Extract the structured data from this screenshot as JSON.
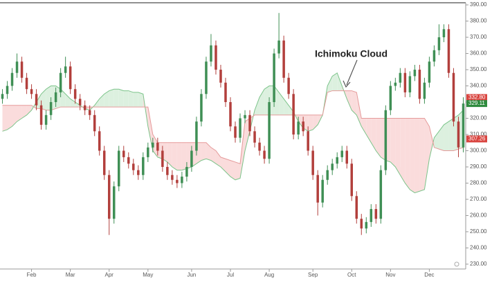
{
  "chart_data": {
    "type": "candlestick",
    "annotation": "Ichimoku Cloud",
    "open": [
      332,
      335,
      340,
      348,
      355,
      345,
      338,
      335,
      328,
      316,
      322,
      330,
      336,
      348,
      352,
      338,
      332,
      328,
      325,
      322,
      312,
      300,
      285,
      258,
      278,
      300,
      296,
      292,
      288,
      285,
      296,
      302,
      305,
      300,
      290,
      285,
      282,
      280,
      284,
      290,
      300,
      318,
      335,
      355,
      365,
      350,
      342,
      330,
      315,
      308,
      320,
      322,
      312,
      305,
      300,
      295,
      330,
      360,
      368,
      345,
      335,
      310,
      318,
      312,
      300,
      285,
      268,
      282,
      288,
      292,
      296,
      300,
      292,
      272,
      258,
      252,
      256,
      264,
      258,
      288,
      325,
      340,
      342,
      348,
      336,
      346,
      350,
      332,
      342,
      355,
      362,
      370,
      375,
      348,
      318,
      302
    ],
    "high": [
      338,
      343,
      351,
      360,
      358,
      348,
      341,
      338,
      331,
      325,
      333,
      339,
      351,
      358,
      355,
      341,
      335,
      331,
      328,
      325,
      315,
      303,
      288,
      281,
      303,
      303,
      299,
      295,
      291,
      299,
      305,
      308,
      308,
      303,
      293,
      288,
      285,
      287,
      293,
      303,
      321,
      338,
      358,
      372,
      368,
      353,
      345,
      333,
      318,
      323,
      325,
      325,
      315,
      308,
      303,
      333,
      363,
      385,
      371,
      348,
      338,
      321,
      321,
      315,
      303,
      288,
      285,
      291,
      295,
      299,
      303,
      303,
      295,
      275,
      261,
      259,
      267,
      267,
      291,
      328,
      343,
      345,
      351,
      351,
      349,
      353,
      353,
      345,
      358,
      365,
      378,
      378,
      378,
      351,
      321,
      333
    ],
    "low": [
      329,
      332,
      337,
      345,
      342,
      335,
      332,
      325,
      313,
      313,
      319,
      327,
      333,
      345,
      335,
      329,
      325,
      322,
      319,
      309,
      297,
      282,
      248,
      255,
      275,
      293,
      289,
      285,
      282,
      282,
      293,
      299,
      297,
      287,
      282,
      279,
      277,
      277,
      281,
      287,
      297,
      315,
      332,
      352,
      347,
      339,
      327,
      312,
      305,
      305,
      317,
      309,
      302,
      297,
      292,
      292,
      327,
      357,
      342,
      332,
      307,
      307,
      309,
      297,
      282,
      260,
      265,
      279,
      285,
      289,
      293,
      289,
      269,
      255,
      248,
      249,
      253,
      255,
      255,
      285,
      322,
      337,
      339,
      333,
      333,
      343,
      329,
      329,
      339,
      352,
      359,
      367,
      345,
      315,
      296,
      299
    ],
    "close": [
      335,
      340,
      348,
      355,
      345,
      338,
      335,
      328,
      316,
      322,
      330,
      336,
      348,
      352,
      338,
      332,
      328,
      325,
      322,
      312,
      300,
      285,
      258,
      278,
      300,
      296,
      292,
      288,
      285,
      296,
      302,
      305,
      300,
      290,
      285,
      282,
      280,
      284,
      290,
      300,
      318,
      335,
      355,
      365,
      350,
      342,
      330,
      315,
      308,
      320,
      322,
      312,
      305,
      300,
      295,
      330,
      360,
      368,
      345,
      335,
      310,
      318,
      312,
      300,
      285,
      268,
      282,
      288,
      292,
      296,
      300,
      292,
      272,
      258,
      252,
      256,
      264,
      258,
      288,
      325,
      340,
      342,
      348,
      336,
      346,
      350,
      332,
      342,
      355,
      362,
      370,
      375,
      348,
      318,
      302,
      329.11
    ],
    "up_color": "#3f8f55",
    "down_color": "#b23f3c",
    "cloud": {
      "span_a": [
        312,
        313,
        315,
        318,
        320,
        322,
        325,
        330,
        335,
        338,
        340,
        340,
        338,
        335,
        332,
        330,
        328,
        326,
        325,
        328,
        332,
        335,
        337,
        338,
        338,
        337,
        337,
        336,
        336,
        335,
        315,
        300,
        296,
        295,
        293,
        290,
        288,
        288,
        289,
        290,
        292,
        294,
        295,
        294,
        292,
        290,
        287,
        284,
        282,
        283,
        300,
        312,
        325,
        333,
        338,
        340,
        340,
        336,
        332,
        328,
        324,
        318,
        314,
        312,
        313,
        316,
        322,
        340,
        346,
        348,
        340,
        332,
        325,
        322,
        315,
        310,
        305,
        300,
        296,
        294,
        293,
        290,
        285,
        280,
        276,
        274,
        275,
        276,
        295,
        308,
        312,
        316,
        318,
        320,
        322,
        325
      ],
      "span_b": [
        328,
        328,
        328,
        328,
        328,
        328,
        328,
        326,
        326,
        325,
        325,
        326,
        327,
        327,
        327,
        327,
        327,
        327,
        327,
        327,
        327,
        327,
        327,
        327,
        327,
        327,
        327,
        327,
        327,
        327,
        327,
        310,
        305,
        305,
        305,
        305,
        305,
        305,
        305,
        305,
        305,
        305,
        305,
        302,
        300,
        296,
        295,
        294,
        293,
        292,
        318,
        320,
        322,
        322,
        322,
        322,
        322,
        322,
        322,
        322,
        322,
        322,
        322,
        322,
        322,
        322,
        322,
        336,
        337,
        337,
        337,
        337,
        337,
        336,
        320,
        320,
        320,
        320,
        320,
        320,
        320,
        320,
        320,
        320,
        320,
        320,
        320,
        320,
        315,
        302,
        301,
        300,
        300,
        300,
        301,
        302
      ],
      "up_line": "#7cc48a",
      "down_line": "#e59a9a",
      "up_fill": "#dcf0df",
      "down_fill": "#fadcdc"
    },
    "price_labels": [
      {
        "value": 332.8,
        "label": "332.80",
        "color": "#d9443f"
      },
      {
        "value": 329.11,
        "color": "#2e8b3e"
      },
      {
        "value": 307.26,
        "label": "307.26",
        "color": "#d9443f"
      }
    ],
    "xlim": [
      -0.5,
      95.5
    ],
    "xticks": [
      {
        "value": 6,
        "label": "Feb"
      },
      {
        "value": 14,
        "label": "Mar"
      },
      {
        "value": 22,
        "label": "Apr"
      },
      {
        "value": 30,
        "label": "May"
      },
      {
        "value": 39,
        "label": "Jun"
      },
      {
        "value": 47,
        "label": "Jul"
      },
      {
        "value": 55,
        "label": "Aug"
      },
      {
        "value": 64,
        "label": "Sep"
      },
      {
        "value": 72,
        "label": "Oct"
      },
      {
        "value": 80,
        "label": "Nov"
      },
      {
        "value": 88,
        "label": "Dec"
      }
    ],
    "ylim": [
      227,
      391.3
    ],
    "yticks": [
      {
        "value": 230,
        "label": "230.00"
      },
      {
        "value": 240,
        "label": "240.00"
      },
      {
        "value": 250,
        "label": "250.00"
      },
      {
        "value": 260,
        "label": "260.00"
      },
      {
        "value": 270,
        "label": "270.00"
      },
      {
        "value": 280,
        "label": "280.00"
      },
      {
        "value": 290,
        "label": "290.00"
      },
      {
        "value": 300,
        "label": "300.00"
      },
      {
        "value": 310,
        "label": "310.00"
      },
      {
        "value": 320,
        "label": "320.00"
      },
      {
        "value": 330,
        "label": "330.00"
      },
      {
        "value": 340,
        "label": "340.00"
      },
      {
        "value": 350,
        "label": "350.00"
      },
      {
        "value": 360,
        "label": "360.00"
      },
      {
        "value": 370,
        "label": "370.00"
      },
      {
        "value": 380,
        "label": "380.00"
      },
      {
        "value": 390,
        "label": "390.00"
      }
    ]
  }
}
